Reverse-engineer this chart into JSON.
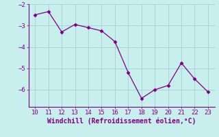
{
  "x": [
    10,
    11,
    12,
    13,
    14,
    15,
    16,
    17,
    18,
    19,
    20,
    21,
    22,
    23
  ],
  "y": [
    -2.5,
    -2.35,
    -3.3,
    -2.95,
    -3.1,
    -3.25,
    -3.75,
    -5.2,
    -6.4,
    -6.0,
    -5.8,
    -4.75,
    -5.5,
    -6.1
  ],
  "line_color": "#7B0080",
  "marker_color": "#7B0080",
  "bg_color": "#c8eeee",
  "grid_color": "#a8d4d4",
  "xlabel": "Windchill (Refroidissement éolien,°C)",
  "xlabel_color": "#7B0080",
  "tick_color": "#7B0080",
  "xlim": [
    9.5,
    23.5
  ],
  "ylim": [
    -6.8,
    -2.0
  ],
  "yticks": [
    -6,
    -5,
    -4,
    -3,
    -2
  ],
  "xticks": [
    10,
    11,
    12,
    13,
    14,
    15,
    16,
    17,
    18,
    19,
    20,
    21,
    22,
    23
  ],
  "spine_color": "#7B0080"
}
